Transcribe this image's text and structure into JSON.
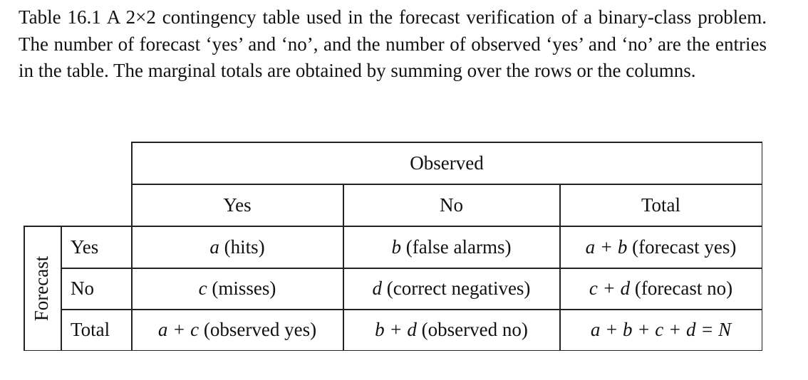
{
  "caption": {
    "label": "Table 16.1",
    "text": "A 2×2 contingency table used in the forecast verification of a binary-class problem. The number of forecast ‘yes’ and ‘no’, and the number of observed ‘yes’ and ‘no’ are the entries in the table. The marginal totals are obtained by summing over the rows or the columns."
  },
  "table": {
    "observed_header": "Observed",
    "forecast_header": "Forecast",
    "columns": [
      "Yes",
      "No",
      "Total"
    ],
    "rows": [
      {
        "label": "Yes",
        "cells": [
          {
            "sym": "a",
            "text": " (hits)"
          },
          {
            "sym": "b",
            "text": " (false alarms)"
          },
          {
            "sym": "a + b",
            "text": " (forecast yes)"
          }
        ]
      },
      {
        "label": "No",
        "cells": [
          {
            "sym": "c",
            "text": " (misses)"
          },
          {
            "sym": "d",
            "text": " (correct negatives)"
          },
          {
            "sym": "c + d",
            "text": " (forecast no)"
          }
        ]
      },
      {
        "label": "Total",
        "cells": [
          {
            "sym": "a + c",
            "text": " (observed yes)"
          },
          {
            "sym": "b + d",
            "text": " (observed no)"
          },
          {
            "sym": "a + b + c + d = N",
            "text": ""
          }
        ]
      }
    ]
  }
}
